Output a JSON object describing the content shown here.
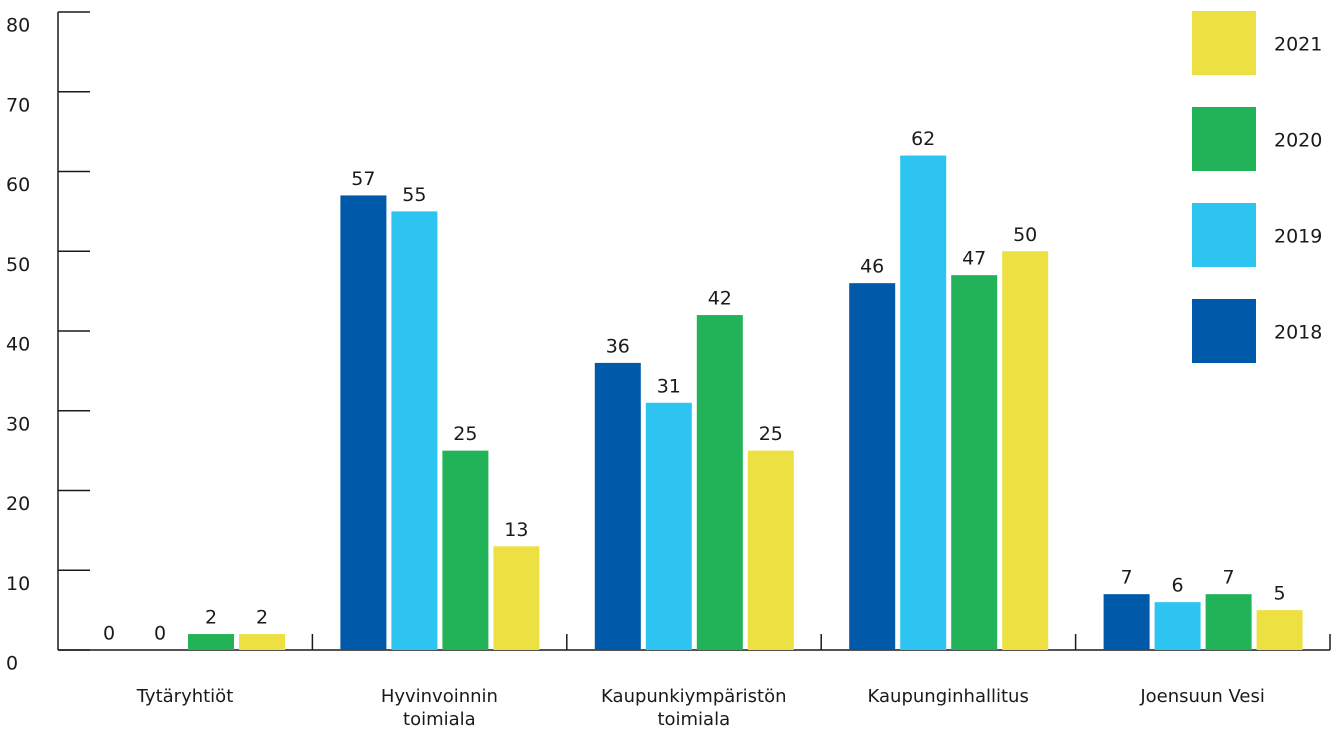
{
  "chart_data": {
    "type": "bar",
    "categories": [
      "Tytäryhtiöt",
      "Hyvinvoinnin\ntoimiala",
      "Kaupunkiympäristön\ntoimiala",
      "Kaupunginhallitus",
      "Joensuun Vesi"
    ],
    "series": [
      {
        "name": "2018",
        "color": "#005aa9",
        "values": [
          0,
          57,
          36,
          46,
          7
        ]
      },
      {
        "name": "2019",
        "color": "#2ec4f2",
        "values": [
          0,
          55,
          31,
          62,
          6
        ]
      },
      {
        "name": "2020",
        "color": "#22b257",
        "values": [
          2,
          25,
          42,
          47,
          7
        ]
      },
      {
        "name": "2021",
        "color": "#ede042",
        "values": [
          2,
          13,
          25,
          50,
          5
        ]
      }
    ],
    "ylim": [
      0,
      80
    ],
    "yticks": [
      0,
      10,
      20,
      30,
      40,
      50,
      60,
      70,
      80
    ],
    "legend": "top-right"
  }
}
